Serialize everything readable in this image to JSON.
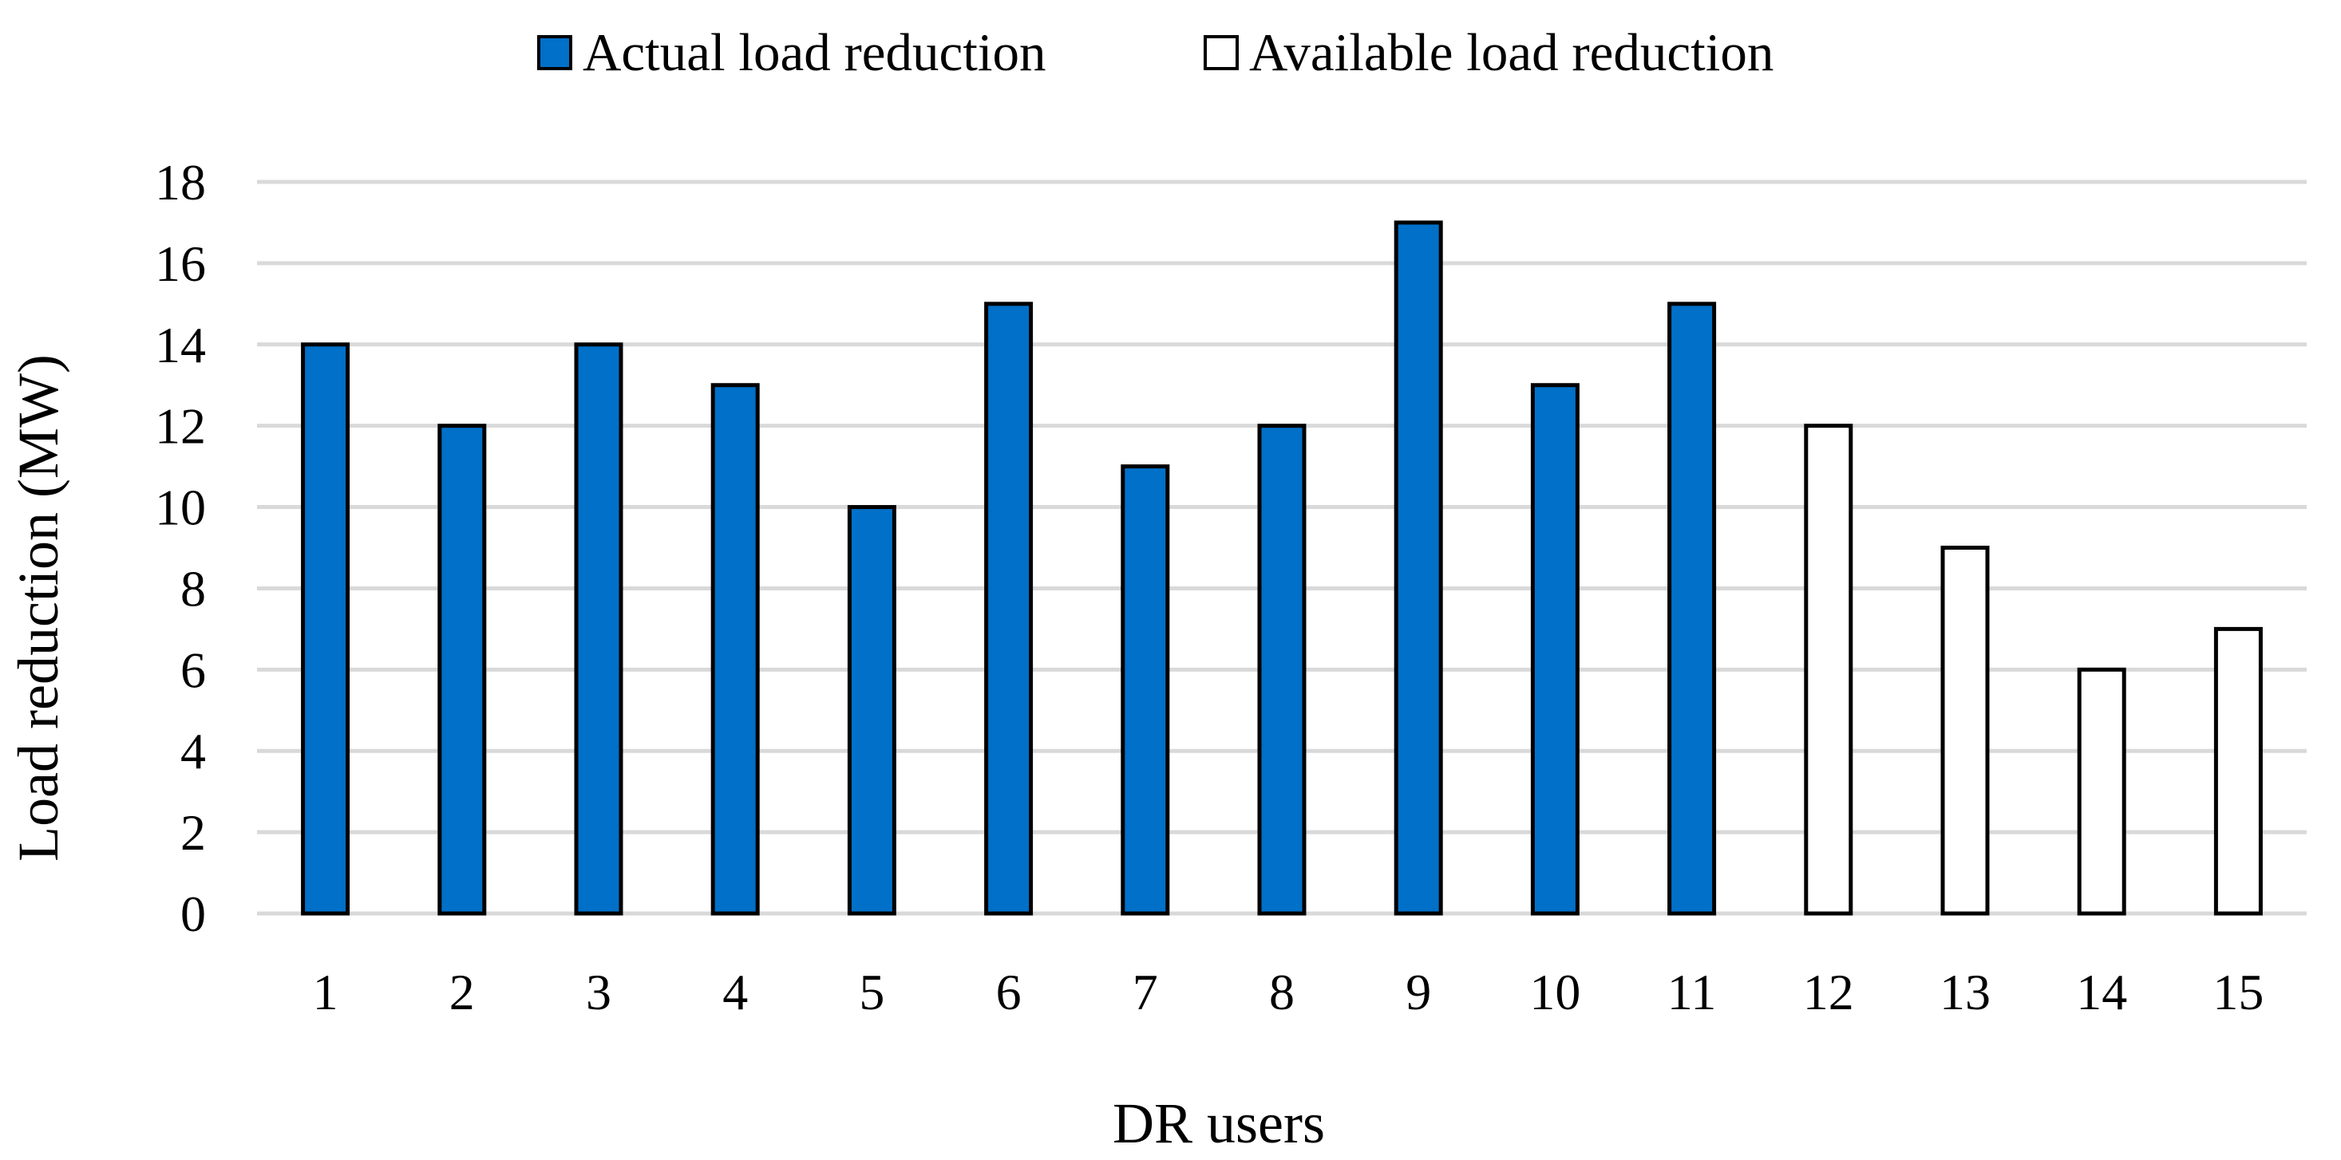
{
  "chart_data": {
    "type": "bar",
    "title": "",
    "xlabel": "DR users",
    "ylabel": "Load reduction (MW)",
    "ylim": [
      0,
      18
    ],
    "yticks": [
      0,
      2,
      4,
      6,
      8,
      10,
      12,
      14,
      16,
      18
    ],
    "grid": true,
    "legend_position": "top-center",
    "categories": [
      "1",
      "2",
      "3",
      "4",
      "5",
      "6",
      "7",
      "8",
      "9",
      "10",
      "11",
      "12",
      "13",
      "14",
      "15"
    ],
    "series": [
      {
        "name": "Actual load reduction",
        "color": "#0070C8",
        "values": [
          14,
          12,
          14,
          13,
          10,
          15,
          11,
          12,
          17,
          13,
          15,
          null,
          null,
          null,
          null
        ]
      },
      {
        "name": "Available load reduction",
        "color": "#FFFFFF",
        "values": [
          null,
          null,
          null,
          null,
          null,
          null,
          null,
          null,
          null,
          null,
          null,
          12,
          9,
          6,
          7
        ]
      }
    ]
  },
  "colors": {
    "gridline": "#D9D9D9",
    "bar_outline": "#000000",
    "text": "#000000"
  }
}
